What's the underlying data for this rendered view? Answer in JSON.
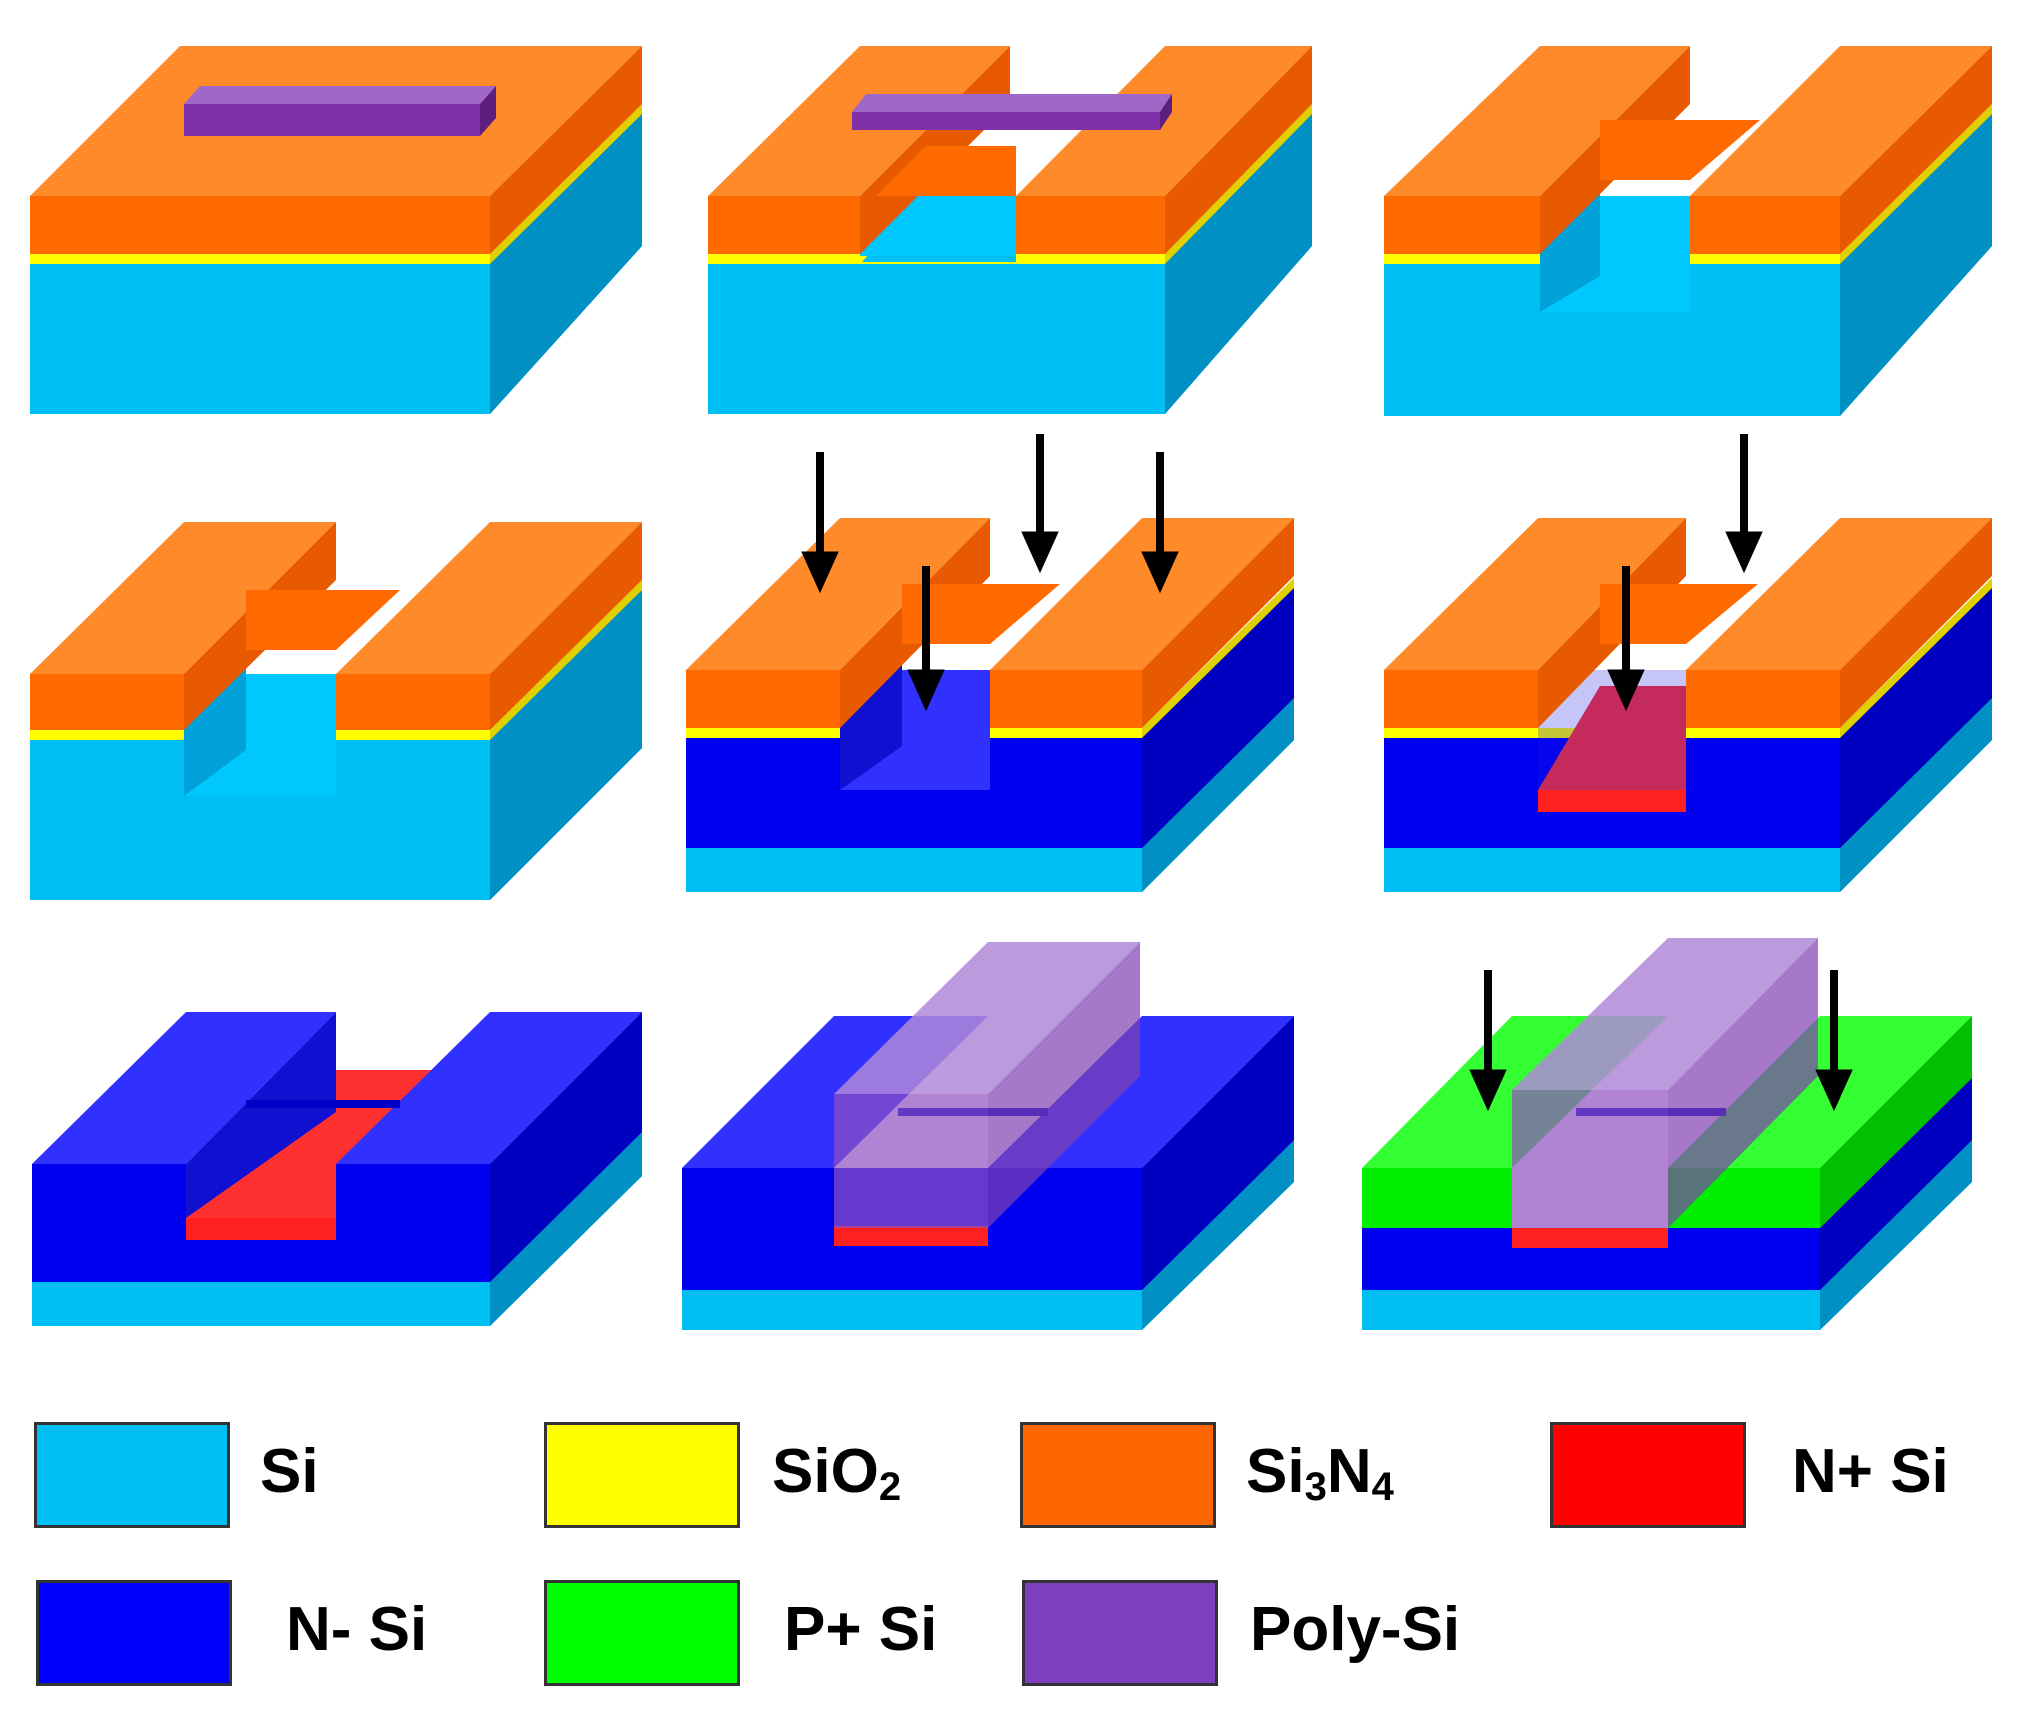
{
  "colors": {
    "si": "#00BFF3",
    "sio2": "#FFFF00",
    "si3n4": "#FF6600",
    "n_plus_si": "#FF0000",
    "n_minus_si": "#0000FF",
    "p_plus_si": "#00FF00",
    "poly_si": "#7F3FBF",
    "arrow": "#000000"
  },
  "legend": [
    {
      "id": "si",
      "label": "Si",
      "sub": "",
      "label2": "",
      "sub2": "",
      "color": "#00BFF3"
    },
    {
      "id": "sio2",
      "label": "SiO",
      "sub": "2",
      "label2": "",
      "sub2": "",
      "color": "#FFFF00"
    },
    {
      "id": "si3n4",
      "label": "Si",
      "sub": "3",
      "label2": "N",
      "sub2": "4",
      "color": "#FF6600"
    },
    {
      "id": "n-plus-si",
      "label": "N+ Si",
      "sub": "",
      "label2": "",
      "sub2": "",
      "color": "#FF0000"
    },
    {
      "id": "n-minus-si",
      "label": "N- Si",
      "sub": "",
      "label2": "",
      "sub2": "",
      "color": "#0000FF"
    },
    {
      "id": "p-plus-si",
      "label": "P+ Si",
      "sub": "",
      "label2": "",
      "sub2": "",
      "color": "#00FF00"
    },
    {
      "id": "poly-si",
      "label": "Poly-Si",
      "sub": "",
      "label2": "",
      "sub2": "",
      "color": "#7F3FBF"
    }
  ]
}
